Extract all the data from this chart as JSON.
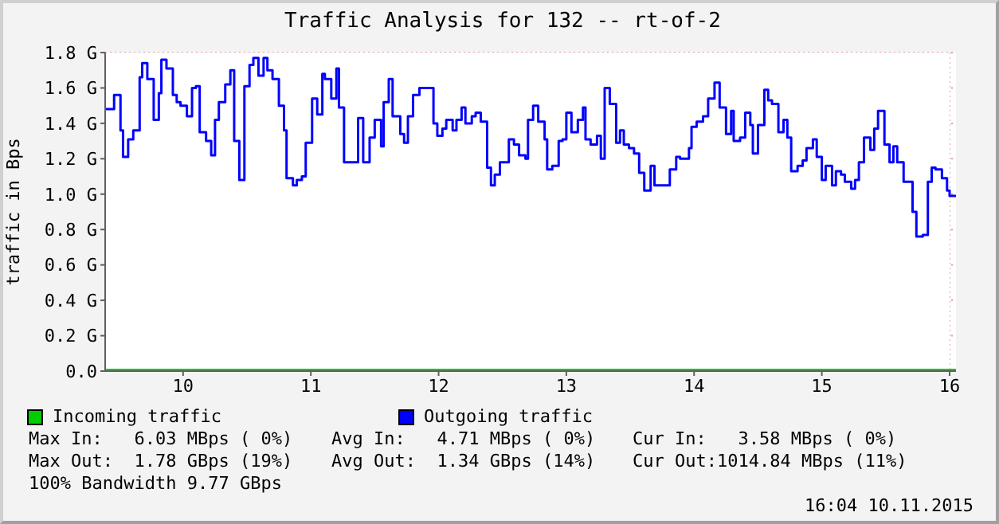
{
  "chart_data": {
    "type": "step",
    "title": "Traffic Analysis for 132 -- rt-of-2",
    "ylabel": "traffic in Bps",
    "xlim": [
      9.39,
      16.05
    ],
    "xticks": [
      10,
      11,
      12,
      13,
      14,
      15,
      16
    ],
    "ylim": [
      0,
      1.8
    ],
    "yticks": [
      {
        "value": 0,
        "label": "0.0"
      },
      {
        "value": 0.2,
        "label": "0.2 G"
      },
      {
        "value": 0.4,
        "label": "0.4 G"
      },
      {
        "value": 0.6,
        "label": "0.6 G"
      },
      {
        "value": 0.8,
        "label": "0.8 G"
      },
      {
        "value": 1.0,
        "label": "1.0 G"
      },
      {
        "value": 1.2,
        "label": "1.2 G"
      },
      {
        "value": 1.4,
        "label": "1.4 G"
      },
      {
        "value": 1.6,
        "label": "1.6 G"
      },
      {
        "value": 1.8,
        "label": "1.8 G"
      }
    ],
    "grid": true,
    "legend": "bottom",
    "marker": "none",
    "line_style": "solid",
    "series": [
      {
        "name": "Incoming traffic",
        "color": "#00cc00",
        "x": [
          9.39,
          16.05
        ],
        "values": [
          0,
          0
        ]
      },
      {
        "name": "Outgoing traffic",
        "color": "#0000ff",
        "x": [
          9.39,
          9.46,
          9.51,
          9.53,
          9.57,
          9.61,
          9.66,
          9.68,
          9.72,
          9.77,
          9.81,
          9.83,
          9.87,
          9.92,
          9.95,
          9.98,
          10.03,
          10.07,
          10.1,
          10.13,
          10.18,
          10.22,
          10.25,
          10.28,
          10.33,
          10.37,
          10.4,
          10.44,
          10.48,
          10.52,
          10.55,
          10.59,
          10.63,
          10.66,
          10.7,
          10.75,
          10.79,
          10.81,
          10.86,
          10.89,
          10.93,
          10.96,
          11.01,
          11.05,
          11.09,
          11.11,
          11.16,
          11.2,
          11.22,
          11.26,
          11.31,
          11.37,
          11.41,
          11.46,
          11.5,
          11.55,
          11.57,
          11.61,
          11.64,
          11.7,
          11.73,
          11.76,
          11.8,
          11.85,
          11.96,
          11.99,
          12.03,
          12.06,
          12.11,
          12.14,
          12.18,
          12.21,
          12.26,
          12.29,
          12.33,
          12.38,
          12.41,
          12.44,
          12.48,
          12.55,
          12.59,
          12.63,
          12.68,
          12.7,
          12.74,
          12.78,
          12.83,
          12.85,
          12.89,
          12.94,
          12.97,
          13.0,
          13.04,
          13.09,
          13.13,
          13.15,
          13.19,
          13.24,
          13.27,
          13.3,
          13.34,
          13.39,
          13.42,
          13.45,
          13.49,
          13.53,
          13.57,
          13.61,
          13.66,
          13.69,
          13.76,
          13.81,
          13.86,
          13.89,
          13.96,
          13.98,
          14.02,
          14.07,
          14.11,
          14.14,
          14.16,
          14.2,
          14.25,
          14.29,
          14.31,
          14.36,
          14.4,
          14.44,
          14.46,
          14.5,
          14.55,
          14.58,
          14.61,
          14.66,
          14.7,
          14.73,
          14.76,
          14.81,
          14.85,
          14.88,
          14.93,
          14.96,
          15.0,
          15.03,
          15.08,
          15.11,
          15.15,
          15.18,
          15.23,
          15.26,
          15.29,
          15.33,
          15.38,
          15.41,
          15.44,
          15.49,
          15.53,
          15.56,
          15.59,
          15.64,
          15.71,
          15.74,
          15.79,
          15.83,
          15.86,
          15.89,
          15.94,
          15.98,
          16.0,
          16.05
        ],
        "values": [
          1.48,
          1.56,
          1.36,
          1.21,
          1.31,
          1.36,
          1.66,
          1.74,
          1.65,
          1.42,
          1.57,
          1.76,
          1.71,
          1.56,
          1.52,
          1.5,
          1.44,
          1.6,
          1.61,
          1.35,
          1.3,
          1.22,
          1.42,
          1.52,
          1.62,
          1.7,
          1.3,
          1.08,
          1.61,
          1.73,
          1.77,
          1.67,
          1.77,
          1.7,
          1.65,
          1.5,
          1.36,
          1.09,
          1.05,
          1.08,
          1.1,
          1.29,
          1.54,
          1.45,
          1.68,
          1.65,
          1.54,
          1.71,
          1.49,
          1.18,
          1.18,
          1.43,
          1.18,
          1.32,
          1.42,
          1.27,
          1.52,
          1.65,
          1.44,
          1.34,
          1.29,
          1.44,
          1.56,
          1.6,
          1.4,
          1.33,
          1.37,
          1.42,
          1.36,
          1.42,
          1.49,
          1.4,
          1.44,
          1.46,
          1.41,
          1.15,
          1.05,
          1.11,
          1.18,
          1.31,
          1.28,
          1.22,
          1.2,
          1.42,
          1.5,
          1.41,
          1.31,
          1.14,
          1.16,
          1.3,
          1.31,
          1.46,
          1.35,
          1.42,
          1.49,
          1.31,
          1.28,
          1.33,
          1.2,
          1.6,
          1.51,
          1.29,
          1.36,
          1.28,
          1.26,
          1.23,
          1.12,
          1.02,
          1.16,
          1.05,
          1.05,
          1.14,
          1.21,
          1.2,
          1.26,
          1.38,
          1.41,
          1.44,
          1.54,
          1.54,
          1.63,
          1.49,
          1.34,
          1.47,
          1.3,
          1.32,
          1.46,
          1.39,
          1.23,
          1.39,
          1.59,
          1.53,
          1.51,
          1.35,
          1.42,
          1.32,
          1.13,
          1.16,
          1.19,
          1.26,
          1.31,
          1.21,
          1.08,
          1.16,
          1.05,
          1.13,
          1.11,
          1.07,
          1.03,
          1.08,
          1.18,
          1.32,
          1.25,
          1.37,
          1.47,
          1.28,
          1.18,
          1.27,
          1.18,
          1.07,
          0.9,
          0.76,
          0.77,
          1.07,
          1.15,
          1.14,
          1.09,
          1.02,
          0.99,
          0.99
        ]
      }
    ],
    "annotations": [
      "Max In:   6.03 MBps ( 0%)",
      "Avg In:   4.71 MBps ( 0%)",
      "Cur In:   3.58 MBps ( 0%)",
      "Max Out:  1.78 GBps (19%)",
      "Avg Out:  1.34 GBps (14%)",
      "Cur Out:1014.84 MBps (11%)",
      "100% Bandwidth 9.77 GBps",
      "16:04 10.11.2015"
    ]
  }
}
